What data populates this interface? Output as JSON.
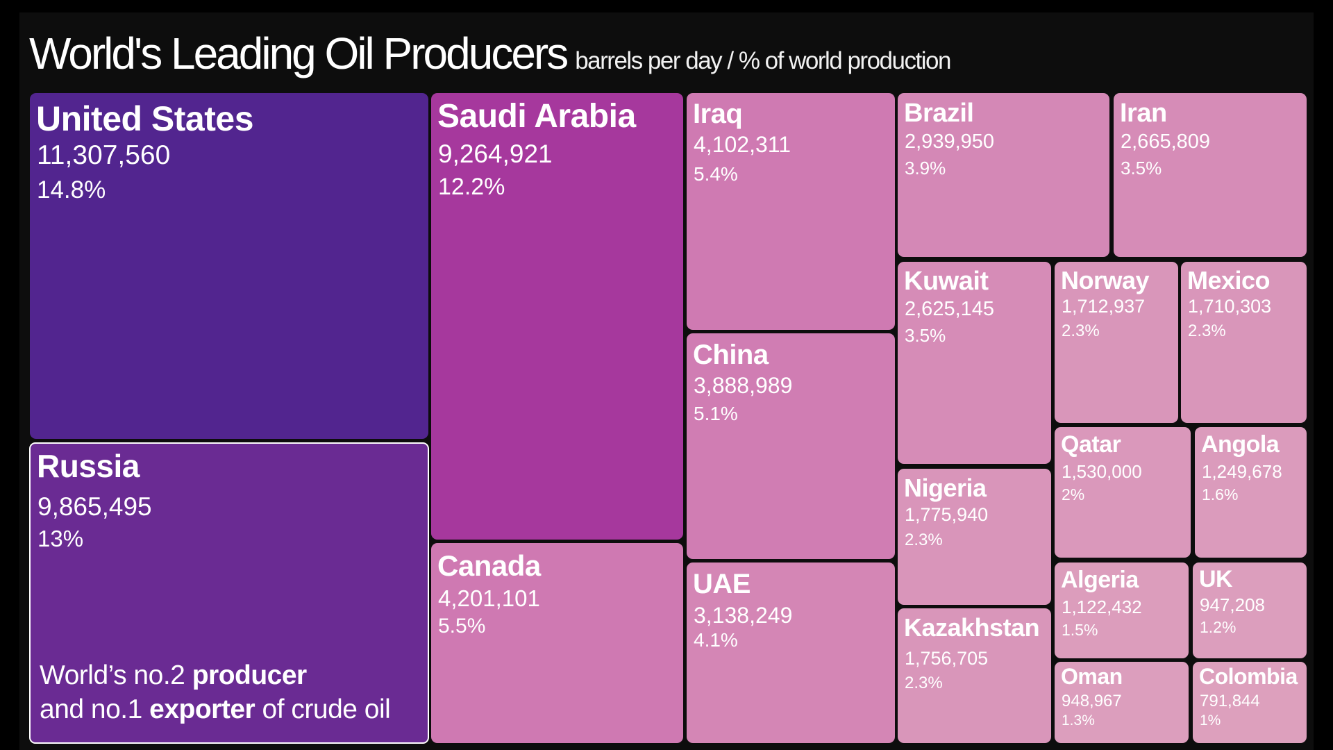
{
  "header": {
    "title": "World's Leading Oil Producers",
    "subtitle": "barrels per day  / % of world production"
  },
  "annotation": {
    "line1_a": "World’s no.2 ",
    "line1_b": "producer",
    "line2_a": "and no.1 ",
    "line2_b": "exporter",
    "line2_c": " of crude oil"
  },
  "chart_data": {
    "type": "treemap",
    "title": "World's Leading Oil Producers",
    "subtitle": "barrels per day  / % of world production",
    "value_unit": "barrels per day",
    "share_unit": "% of world production",
    "highlighted": "Russia",
    "colors": {
      "darkest": "#52258f",
      "lightest": "#dda0bd"
    },
    "items": [
      {
        "name": "United States",
        "value": 11307560,
        "value_label": "11,307,560",
        "share_label": "14.8%"
      },
      {
        "name": "Russia",
        "value": 9865495,
        "value_label": "9,865,495",
        "share_label": "13%"
      },
      {
        "name": "Saudi Arabia",
        "value": 9264921,
        "value_label": "9,264,921",
        "share_label": "12.2%"
      },
      {
        "name": "Canada",
        "value": 4201101,
        "value_label": "4,201,101",
        "share_label": "5.5%"
      },
      {
        "name": "Iraq",
        "value": 4102311,
        "value_label": "4,102,311",
        "share_label": "5.4%"
      },
      {
        "name": "China",
        "value": 3888989,
        "value_label": "3,888,989",
        "share_label": "5.1%"
      },
      {
        "name": "UAE",
        "value": 3138249,
        "value_label": "3,138,249",
        "share_label": "4.1%"
      },
      {
        "name": "Brazil",
        "value": 2939950,
        "value_label": "2,939,950",
        "share_label": "3.9%"
      },
      {
        "name": "Iran",
        "value": 2665809,
        "value_label": "2,665,809",
        "share_label": "3.5%"
      },
      {
        "name": "Kuwait",
        "value": 2625145,
        "value_label": "2,625,145",
        "share_label": "3.5%"
      },
      {
        "name": "Nigeria",
        "value": 1775940,
        "value_label": "1,775,940",
        "share_label": "2.3%"
      },
      {
        "name": "Kazakhstan",
        "value": 1756705,
        "value_label": "1,756,705",
        "share_label": "2.3%"
      },
      {
        "name": "Norway",
        "value": 1712937,
        "value_label": "1,712,937",
        "share_label": "2.3%"
      },
      {
        "name": "Mexico",
        "value": 1710303,
        "value_label": "1,710,303",
        "share_label": "2.3%"
      },
      {
        "name": "Qatar",
        "value": 1530000,
        "value_label": "1,530,000",
        "share_label": "2%"
      },
      {
        "name": "Angola",
        "value": 1249678,
        "value_label": "1,249,678",
        "share_label": "1.6%"
      },
      {
        "name": "Algeria",
        "value": 1122432,
        "value_label": "1,122,432",
        "share_label": "1.5%"
      },
      {
        "name": "UK",
        "value": 947208,
        "value_label": "947,208",
        "share_label": "1.2%"
      },
      {
        "name": "Oman",
        "value": 948967,
        "value_label": "948,967",
        "share_label": "1.3%"
      },
      {
        "name": "Colombia",
        "value": 791844,
        "value_label": "791,844",
        "share_label": "1%"
      }
    ]
  }
}
